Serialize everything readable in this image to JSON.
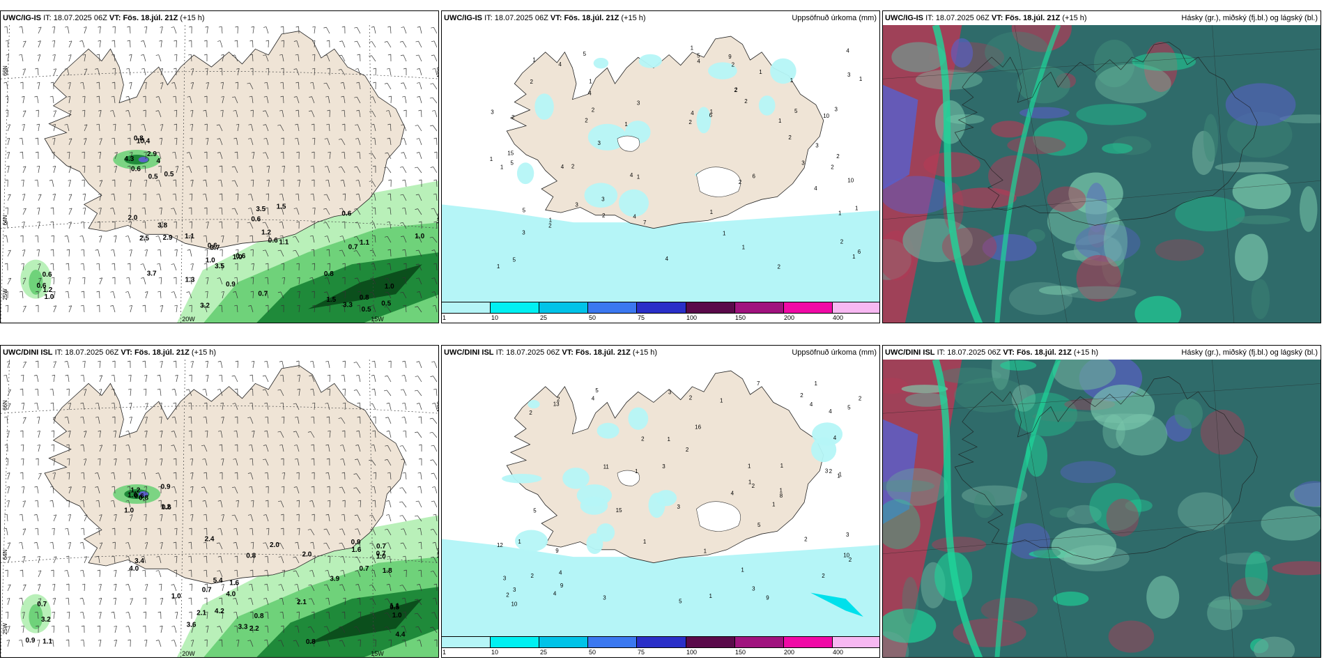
{
  "colors": {
    "land": "#efe4d6",
    "sea": "#ffffff",
    "precip_light": "#b5f5f7",
    "precip_med": "#00e0eb",
    "green_light": "#b9f0b9",
    "green_mid": "#6fd27a",
    "green_dark": "#1f8a3a",
    "green_darkest": "#0b4f1c",
    "cloud_high": "#2f6b6a",
    "cloud_mid": "#1ed69a",
    "cloud_low": "#b33a55",
    "cloud_blue": "#5a5fc8"
  },
  "rows": [
    {
      "model": "UWC/IG-IS",
      "it_label": "IT:",
      "it_value": "18.07.2025 06Z",
      "vt_label": "VT:",
      "vt_value": "Fös. 18.júl. 21Z",
      "lead": "(+15 h)",
      "precip_title": "Uppsöfnuð úrkoma (mm)",
      "cloud_title": "Hásky (gr.), miðský (fj.bl.) og lágský (bl.)",
      "lon_labels": [
        "20W",
        "15W"
      ],
      "lat_labels": [
        "66N",
        "64N",
        "25W"
      ],
      "right_lat_labels": [
        "66N",
        "64N"
      ],
      "wind_values": [
        "0.6",
        "0.5",
        "4",
        "4.3",
        "10.4",
        "0.8",
        "0.5",
        "2.9",
        "1.3",
        "1.1",
        "0.6",
        "0.5",
        "0.6",
        "0.8",
        "1.5",
        "0.6",
        "1.2",
        "0.6",
        "0.8",
        "2.9",
        "3.8",
        "3.5",
        "2.0",
        "3.3",
        "3.2",
        "3.5",
        "1.5",
        "1.0",
        "0.7",
        "0.6",
        "0.5",
        "1.0",
        "1.0",
        "2.5",
        "0.9",
        "1.1",
        "3.7",
        "0.7",
        "1.0",
        "1.1",
        "0.7",
        "1.2",
        "1.0",
        "0.6",
        "0.6"
      ],
      "precip_values": [
        "1",
        "1",
        "2",
        "2",
        "3",
        "4",
        "1",
        "1",
        "3",
        "3",
        "4",
        "2",
        "1",
        "2",
        "1",
        "1",
        "1",
        "1",
        "1",
        "1",
        "2",
        "1",
        "1",
        "3",
        "3",
        "4",
        "4",
        "15",
        "6",
        "4",
        "6",
        "3",
        "1",
        "1",
        "2",
        "2",
        "2",
        "2",
        "1",
        "2",
        "2",
        "1",
        "3",
        "3",
        "2",
        "4",
        "2",
        "2",
        "2",
        "2",
        "4",
        "6",
        "2",
        "5",
        "5",
        "5",
        "1",
        "1",
        "1",
        "2",
        "3",
        "3",
        "4",
        "4",
        "4",
        "5",
        "5",
        "5",
        "7",
        "10",
        "10",
        "9"
      ]
    },
    {
      "model": "UWC/DINI ISL",
      "it_label": "IT:",
      "it_value": "18.07.2025 06Z",
      "vt_label": "VT:",
      "vt_value": "Fös. 18.júl. 21Z",
      "lead": "(+15 h)",
      "precip_title": "Uppsöfnuð úrkoma (mm)",
      "cloud_title": "Hásky (gr.), miðský (fj.bl.) og lágský (bl.)",
      "lon_labels": [
        "20W",
        "15W"
      ],
      "lat_labels": [
        "66N",
        "64N",
        "25W"
      ],
      "right_lat_labels": [
        "66N",
        "64N"
      ],
      "wind_values": [
        "0.6",
        "0.8",
        "1.2",
        "1.0",
        "1.2",
        "0.6",
        "1.0",
        "0.9",
        "1.0",
        "0.7",
        "1.0",
        "0.9",
        "0.8",
        "2.2",
        "1.6",
        "1.8",
        "2.0",
        "2.4",
        "1.1",
        "0.8",
        "0.7",
        "4.0",
        "2.0",
        "0.8",
        "2.1",
        "4.2",
        "5.4",
        "4.4",
        "0.5",
        "1.0",
        "4.0",
        "3.9",
        "3.3",
        "3.6",
        "3.4",
        "2.1",
        "0.7",
        "0.7",
        "1.6",
        "3.2",
        "1.1",
        "0.9",
        "0.7"
      ],
      "precip_values": [
        "1",
        "1",
        "2",
        "1",
        "2",
        "2",
        "1",
        "2",
        "2",
        "1",
        "1",
        "3",
        "1",
        "1",
        "1",
        "1",
        "1",
        "1",
        "1",
        "5",
        "5",
        "3",
        "3",
        "3",
        "8",
        "5",
        "4",
        "4",
        "4",
        "4",
        "2",
        "2",
        "1",
        "1",
        "2",
        "2",
        "2",
        "3",
        "3",
        "3",
        "9",
        "2",
        "2",
        "2",
        "2",
        "15",
        "1",
        "3",
        "3",
        "5",
        "4",
        "4",
        "4",
        "5",
        "10",
        "11",
        "16",
        "13",
        "9",
        "12",
        "10",
        "9",
        "7"
      ]
    }
  ],
  "colorbar": {
    "labels": [
      "1",
      "10",
      "25",
      "50",
      "75",
      "100",
      "150",
      "200",
      "400"
    ],
    "colors": [
      "#b5f5f7",
      "#00f0f2",
      "#00c3e8",
      "#3b78f0",
      "#2a2fc8",
      "#5a0a4a",
      "#a0137e",
      "#f00aa6",
      "#f7b8f2"
    ]
  }
}
